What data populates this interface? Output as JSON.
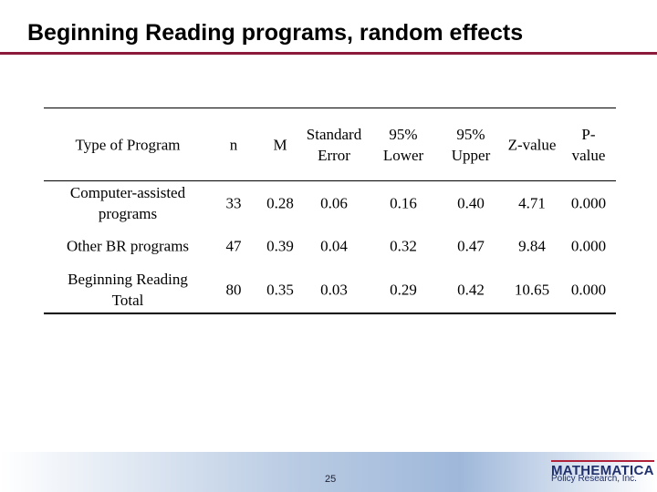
{
  "header": {
    "title": "Beginning Reading programs, random effects"
  },
  "table": {
    "columns": [
      "Type of Program",
      "n",
      "M",
      "Standard\nError",
      "95%\nLower",
      "95%\nUpper",
      "Z-value",
      "P-\nvalue"
    ],
    "rows": [
      [
        "Computer-assisted\nprograms",
        "33",
        "0.28",
        "0.06",
        "0.16",
        "0.40",
        "4.71",
        "0.000"
      ],
      [
        "Other BR programs",
        "47",
        "0.39",
        "0.04",
        "0.32",
        "0.47",
        "9.84",
        "0.000"
      ],
      [
        "Beginning Reading\nTotal",
        "80",
        "0.35",
        "0.03",
        "0.29",
        "0.42",
        "10.65",
        "0.000"
      ]
    ]
  },
  "footer": {
    "page_number": "25",
    "logo": "MATHEMATICA",
    "logo_subtitle": "Policy Research, Inc."
  }
}
